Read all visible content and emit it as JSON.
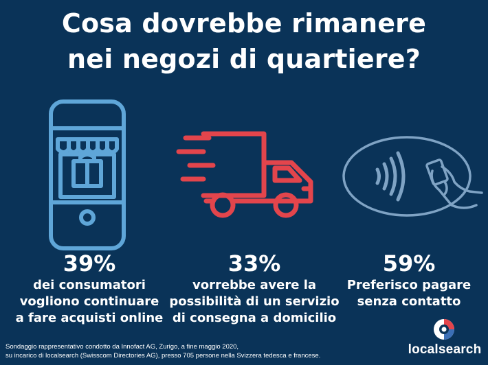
{
  "title": {
    "line1": "Cosa dovrebbe rimanere",
    "line2": "nei negozi di quartiere?"
  },
  "colors": {
    "background": "#0a3358",
    "phone_icon": "#5fa6d8",
    "truck_icon": "#e3454c",
    "contactless_icon": "#7fa3c4",
    "text": "#ffffff"
  },
  "stats": [
    {
      "icon": "smartphone-shopping-bag-icon",
      "percent": "39%",
      "description": "dei consumatori\nvogliono continuare\na fare acquisti online"
    },
    {
      "icon": "delivery-truck-icon",
      "percent": "33%",
      "description": "vorrebbe avere la\npossibilità di un servizio\ndi consegna a domicilio"
    },
    {
      "icon": "contactless-payment-icon",
      "percent": "59%",
      "description": "Preferisco pagare\nsenza contatto"
    }
  ],
  "footnote": {
    "line1": "Sondaggio rappresentativo condotto da Innofact AG, Zurigo, a fine maggio 2020,",
    "line2": "su incarico di localsearch (Swisscom Directories AG), presso 705 persone nella Svizzera tedesca e francese."
  },
  "brand": {
    "name": "localsearch",
    "logo_icon": "localsearch-logo-icon"
  }
}
